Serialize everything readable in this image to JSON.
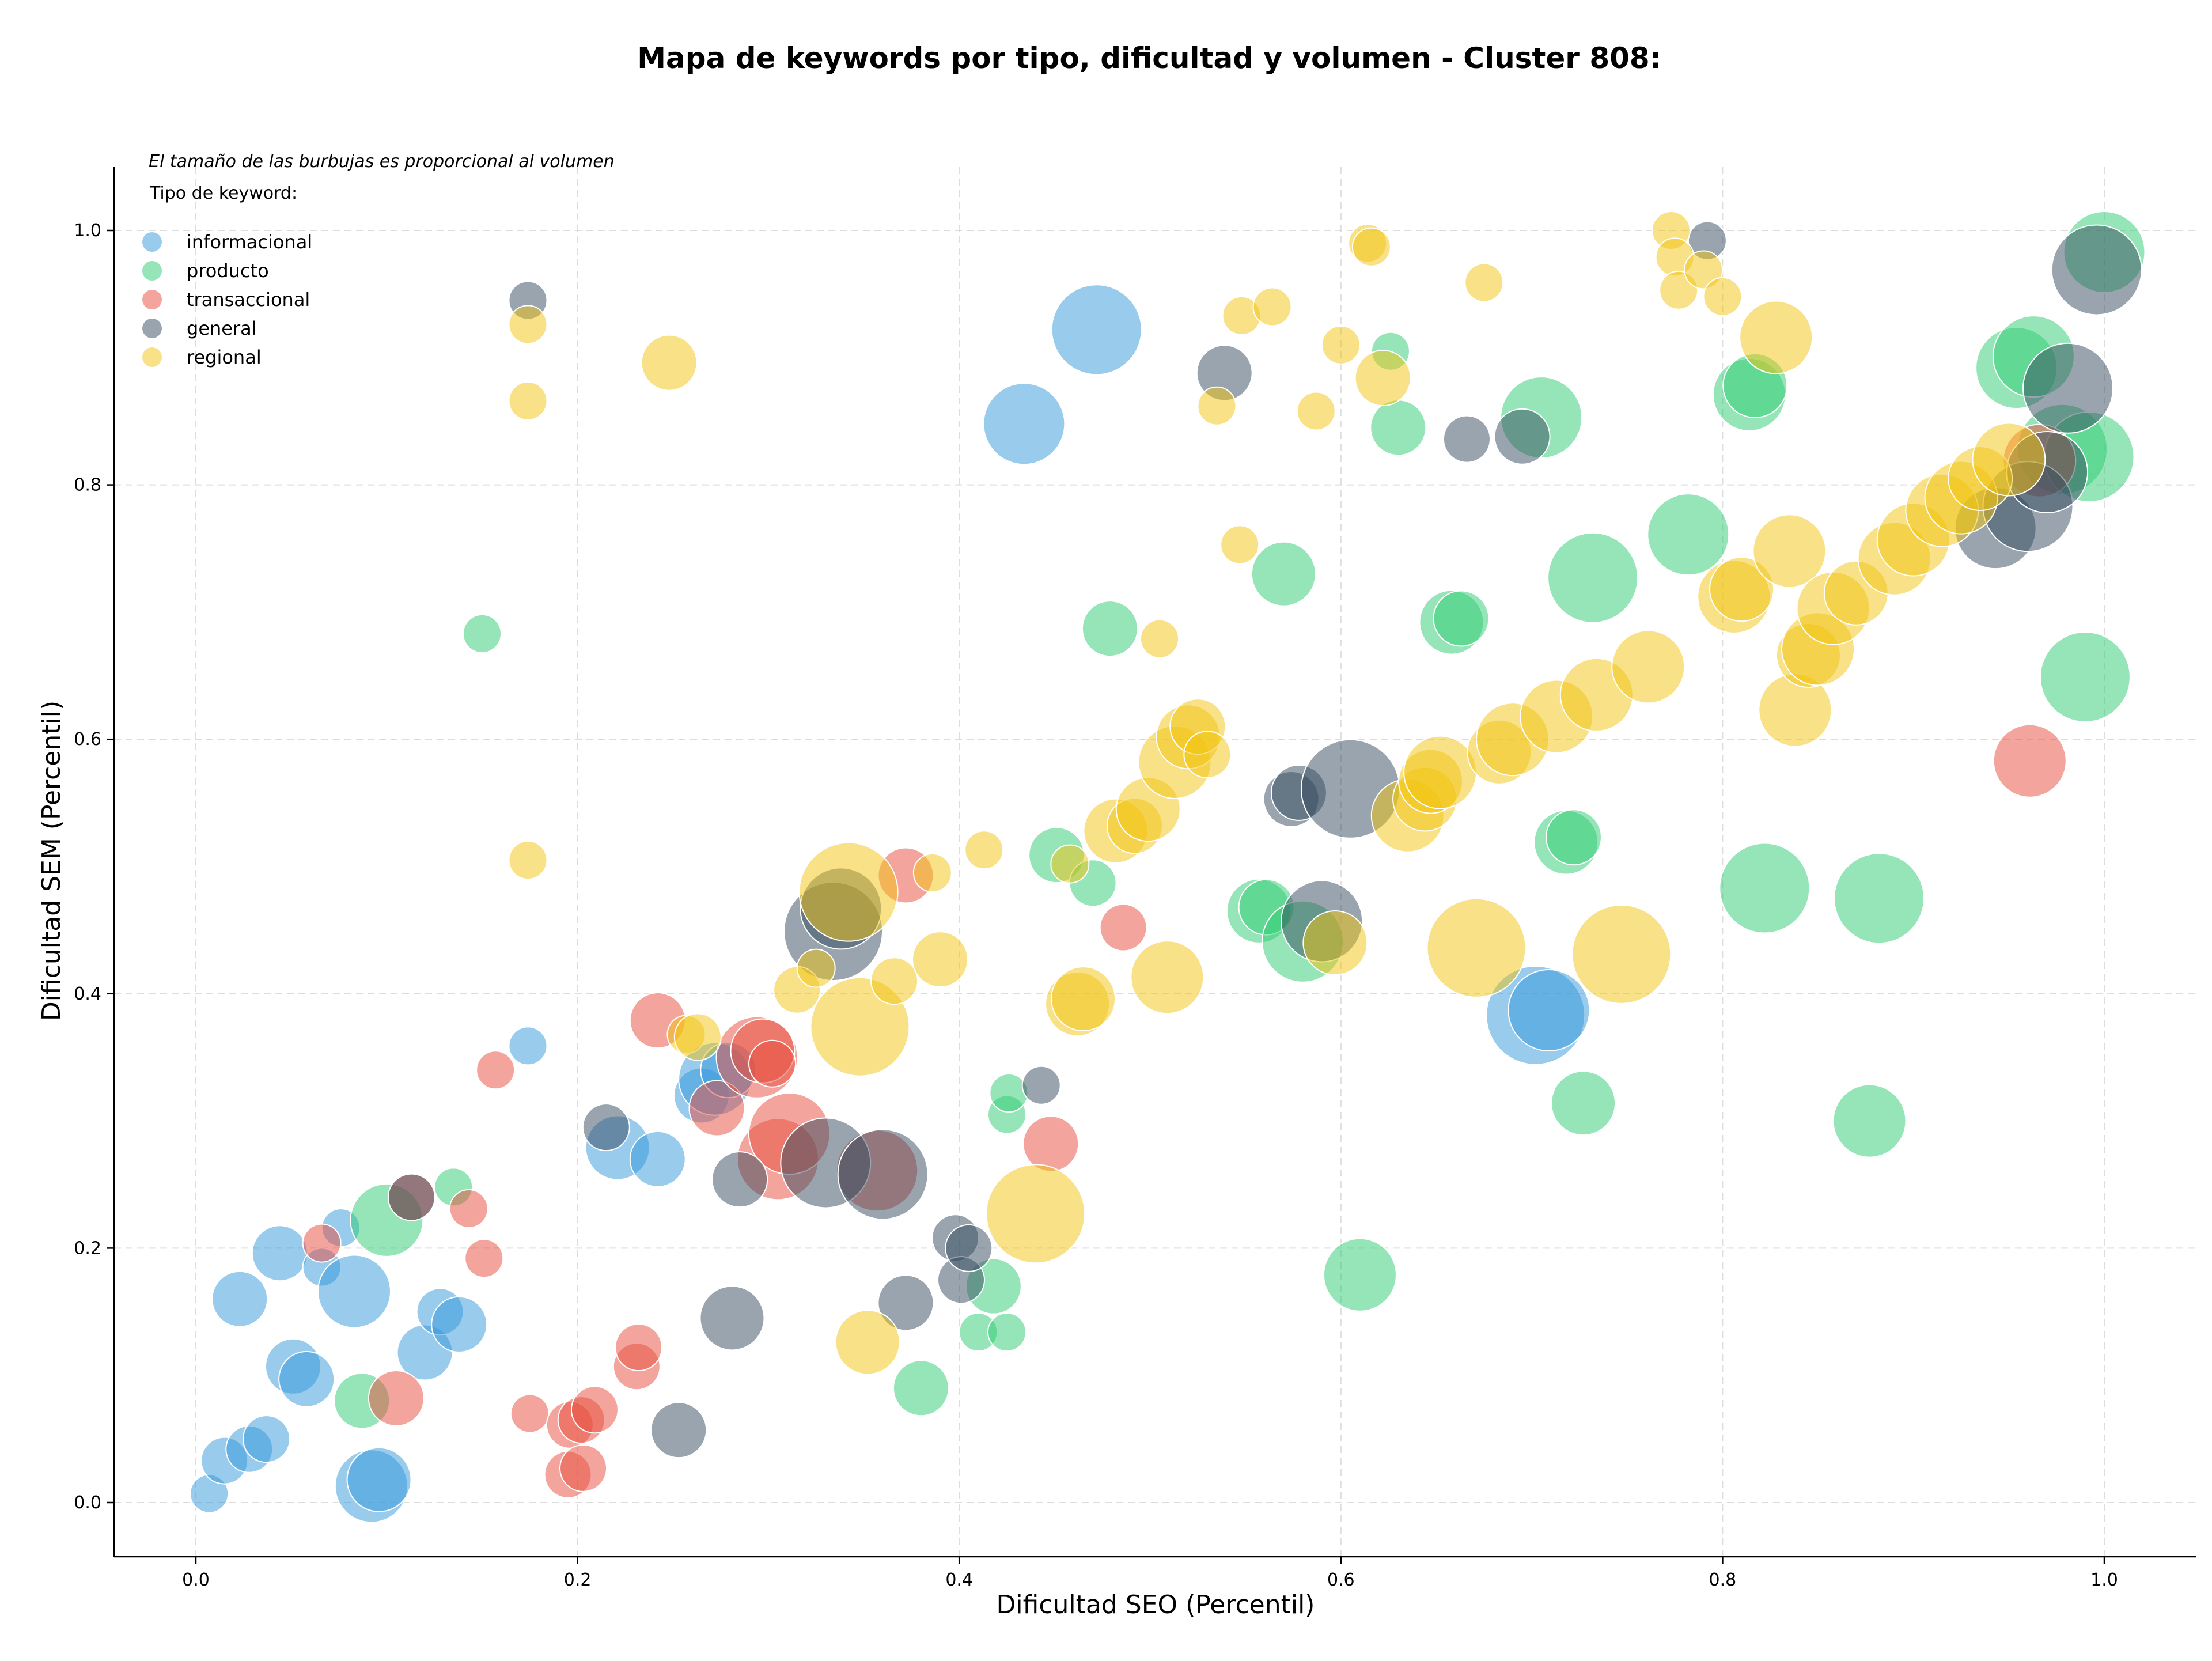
{
  "chart_data": {
    "type": "scatter",
    "title": "Mapa de keywords por tipo, dificultad y volumen - Cluster 808:",
    "xlabel": "Dificultad SEO (Percentil)",
    "ylabel": "Dificultad SEM (Percentil)",
    "xlim": [
      -0.04,
      1.05
    ],
    "ylim": [
      -0.04,
      1.05
    ],
    "xticks": [
      "0.0",
      "0.2",
      "0.4",
      "0.6",
      "0.8",
      "1.0"
    ],
    "yticks": [
      "0.0",
      "0.2",
      "0.4",
      "0.6",
      "0.8",
      "1.0"
    ],
    "grid": true,
    "legend_position": "top-left",
    "annotation": "El tamaño de las burbujas es proporcional al volumen",
    "legend_title": "Tipo de keyword:",
    "series": [
      {
        "name": "informacional",
        "color": "#3498db",
        "points": [
          [
            0.007,
            0.007,
            2
          ],
          [
            0.015,
            0.033,
            3
          ],
          [
            0.028,
            0.042,
            3
          ],
          [
            0.037,
            0.05,
            3
          ],
          [
            0.023,
            0.16,
            4
          ],
          [
            0.044,
            0.196,
            4
          ],
          [
            0.051,
            0.107,
            4
          ],
          [
            0.058,
            0.097,
            4
          ],
          [
            0.066,
            0.185,
            2
          ],
          [
            0.076,
            0.216,
            2
          ],
          [
            0.083,
            0.166,
            6
          ],
          [
            0.092,
            0.013,
            6
          ],
          [
            0.096,
            0.018,
            5
          ],
          [
            0.12,
            0.118,
            4
          ],
          [
            0.128,
            0.15,
            3
          ],
          [
            0.138,
            0.14,
            4
          ],
          [
            0.174,
            0.359,
            2
          ],
          [
            0.221,
            0.279,
            5
          ],
          [
            0.242,
            0.27,
            4
          ],
          [
            0.265,
            0.32,
            4
          ],
          [
            0.272,
            0.333,
            6
          ],
          [
            0.279,
            0.34,
            4
          ],
          [
            0.434,
            0.848,
            7
          ],
          [
            0.472,
            0.922,
            8
          ],
          [
            0.702,
            0.383,
            9
          ],
          [
            0.709,
            0.387,
            7
          ]
        ]
      },
      {
        "name": "producto",
        "color": "#2ecc71",
        "points": [
          [
            0.087,
            0.08,
            4
          ],
          [
            0.1,
            0.222,
            6
          ],
          [
            0.135,
            0.248,
            2
          ],
          [
            0.15,
            0.683,
            2
          ],
          [
            0.38,
            0.09,
            4
          ],
          [
            0.41,
            0.134,
            2
          ],
          [
            0.418,
            0.17,
            4
          ],
          [
            0.425,
            0.134,
            2
          ],
          [
            0.425,
            0.305,
            2
          ],
          [
            0.426,
            0.322,
            2
          ],
          [
            0.451,
            0.509,
            4
          ],
          [
            0.47,
            0.487,
            3
          ],
          [
            0.479,
            0.687,
            4
          ],
          [
            0.557,
            0.465,
            5
          ],
          [
            0.561,
            0.468,
            4
          ],
          [
            0.57,
            0.73,
            5
          ],
          [
            0.58,
            0.441,
            7
          ],
          [
            0.61,
            0.179,
            6
          ],
          [
            0.626,
            0.905,
            2
          ],
          [
            0.63,
            0.845,
            4
          ],
          [
            0.658,
            0.692,
            5
          ],
          [
            0.663,
            0.695,
            4
          ],
          [
            0.705,
            0.853,
            7
          ],
          [
            0.718,
            0.519,
            5
          ],
          [
            0.722,
            0.523,
            4
          ],
          [
            0.727,
            0.314,
            5
          ],
          [
            0.732,
            0.727,
            8
          ],
          [
            0.782,
            0.761,
            7
          ],
          [
            0.814,
            0.871,
            6
          ],
          [
            0.817,
            0.878,
            5
          ],
          [
            0.822,
            0.483,
            8
          ],
          [
            0.877,
            0.3,
            6
          ],
          [
            0.882,
            0.475,
            8
          ],
          [
            0.954,
            0.892,
            7
          ],
          [
            0.963,
            0.901,
            7
          ],
          [
            0.978,
            0.828,
            8
          ],
          [
            0.99,
            0.649,
            8
          ],
          [
            0.992,
            0.822,
            8
          ],
          [
            1.0,
            0.983,
            7
          ]
        ]
      },
      {
        "name": "transaccional",
        "color": "#e74c3c",
        "points": [
          [
            0.066,
            0.204,
            2
          ],
          [
            0.105,
            0.082,
            4
          ],
          [
            0.113,
            0.24,
            3
          ],
          [
            0.143,
            0.231,
            2
          ],
          [
            0.151,
            0.192,
            2
          ],
          [
            0.157,
            0.34,
            2
          ],
          [
            0.175,
            0.07,
            2
          ],
          [
            0.195,
            0.022,
            3
          ],
          [
            0.196,
            0.061,
            3
          ],
          [
            0.202,
            0.065,
            3
          ],
          [
            0.203,
            0.027,
            3
          ],
          [
            0.209,
            0.073,
            3
          ],
          [
            0.231,
            0.107,
            3
          ],
          [
            0.232,
            0.122,
            3
          ],
          [
            0.242,
            0.379,
            4
          ],
          [
            0.273,
            0.31,
            4
          ],
          [
            0.294,
            0.35,
            7
          ],
          [
            0.297,
            0.355,
            5
          ],
          [
            0.302,
            0.345,
            3
          ],
          [
            0.305,
            0.27,
            7
          ],
          [
            0.311,
            0.29,
            7
          ],
          [
            0.357,
            0.261,
            7
          ],
          [
            0.372,
            0.493,
            4
          ],
          [
            0.448,
            0.282,
            4
          ],
          [
            0.486,
            0.452,
            3
          ],
          [
            0.961,
            0.583,
            6
          ],
          [
            0.966,
            0.819,
            6
          ]
        ]
      },
      {
        "name": "general",
        "color": "#34495e",
        "points": [
          [
            0.113,
            0.24,
            3
          ],
          [
            0.174,
            0.945,
            2
          ],
          [
            0.215,
            0.295,
            3
          ],
          [
            0.253,
            0.057,
            4
          ],
          [
            0.285,
            0.254,
            4
          ],
          [
            0.281,
            0.145,
            5
          ],
          [
            0.33,
            0.267,
            8
          ],
          [
            0.334,
            0.449,
            9
          ],
          [
            0.338,
            0.467,
            7
          ],
          [
            0.36,
            0.258,
            8
          ],
          [
            0.372,
            0.157,
            4
          ],
          [
            0.398,
            0.208,
            3
          ],
          [
            0.401,
            0.175,
            3
          ],
          [
            0.405,
            0.2,
            3
          ],
          [
            0.443,
            0.328,
            2
          ],
          [
            0.539,
            0.888,
            4
          ],
          [
            0.574,
            0.553,
            4
          ],
          [
            0.578,
            0.558,
            4
          ],
          [
            0.59,
            0.457,
            7
          ],
          [
            0.605,
            0.561,
            9
          ],
          [
            0.666,
            0.836,
            3
          ],
          [
            0.695,
            0.838,
            4
          ],
          [
            0.792,
            0.992,
            2
          ],
          [
            0.943,
            0.766,
            7
          ],
          [
            0.96,
            0.783,
            8
          ],
          [
            0.97,
            0.81,
            7
          ],
          [
            0.981,
            0.876,
            8
          ],
          [
            0.996,
            0.969,
            8
          ]
        ]
      },
      {
        "name": "regional",
        "color": "#f1c40f",
        "points": [
          [
            0.174,
            0.926,
            2
          ],
          [
            0.174,
            0.866,
            2
          ],
          [
            0.174,
            0.505,
            2
          ],
          [
            0.248,
            0.896,
            4
          ],
          [
            0.257,
            0.368,
            2
          ],
          [
            0.263,
            0.366,
            3
          ],
          [
            0.315,
            0.403,
            3
          ],
          [
            0.325,
            0.42,
            2
          ],
          [
            0.342,
            0.48,
            9
          ],
          [
            0.348,
            0.374,
            9
          ],
          [
            0.352,
            0.126,
            5
          ],
          [
            0.366,
            0.41,
            3
          ],
          [
            0.386,
            0.495,
            2
          ],
          [
            0.39,
            0.427,
            4
          ],
          [
            0.413,
            0.513,
            2
          ],
          [
            0.44,
            0.227,
            9
          ],
          [
            0.458,
            0.502,
            2
          ],
          [
            0.462,
            0.392,
            5
          ],
          [
            0.465,
            0.396,
            5
          ],
          [
            0.482,
            0.528,
            5
          ],
          [
            0.492,
            0.532,
            4
          ],
          [
            0.499,
            0.545,
            5
          ],
          [
            0.505,
            0.679,
            2
          ],
          [
            0.509,
            0.413,
            6
          ],
          [
            0.513,
            0.582,
            6
          ],
          [
            0.52,
            0.602,
            5
          ],
          [
            0.525,
            0.61,
            4
          ],
          [
            0.53,
            0.588,
            3
          ],
          [
            0.535,
            0.862,
            2
          ],
          [
            0.547,
            0.753,
            2
          ],
          [
            0.548,
            0.933,
            2
          ],
          [
            0.564,
            0.94,
            2
          ],
          [
            0.587,
            0.858,
            2
          ],
          [
            0.597,
            0.44,
            5
          ],
          [
            0.6,
            0.91,
            2
          ],
          [
            0.614,
            0.99,
            2
          ],
          [
            0.616,
            0.987,
            2
          ],
          [
            0.622,
            0.884,
            4
          ],
          [
            0.635,
            0.54,
            6
          ],
          [
            0.644,
            0.553,
            5
          ],
          [
            0.647,
            0.567,
            5
          ],
          [
            0.652,
            0.574,
            6
          ],
          [
            0.671,
            0.436,
            9
          ],
          [
            0.675,
            0.959,
            2
          ],
          [
            0.683,
            0.59,
            5
          ],
          [
            0.69,
            0.6,
            6
          ],
          [
            0.713,
            0.618,
            6
          ],
          [
            0.734,
            0.635,
            6
          ],
          [
            0.747,
            0.431,
            9
          ],
          [
            0.761,
            0.657,
            6
          ],
          [
            0.773,
            1.0,
            2
          ],
          [
            0.775,
            0.979,
            2
          ],
          [
            0.777,
            0.953,
            2
          ],
          [
            0.79,
            0.969,
            2
          ],
          [
            0.8,
            0.948,
            2
          ],
          [
            0.806,
            0.712,
            6
          ],
          [
            0.81,
            0.718,
            5
          ],
          [
            0.828,
            0.916,
            6
          ],
          [
            0.835,
            0.748,
            6
          ],
          [
            0.838,
            0.623,
            6
          ],
          [
            0.845,
            0.666,
            5
          ],
          [
            0.85,
            0.671,
            6
          ],
          [
            0.858,
            0.703,
            6
          ],
          [
            0.87,
            0.715,
            5
          ],
          [
            0.89,
            0.742,
            6
          ],
          [
            0.9,
            0.757,
            6
          ],
          [
            0.915,
            0.78,
            6
          ],
          [
            0.925,
            0.79,
            6
          ],
          [
            0.935,
            0.805,
            5
          ],
          [
            0.95,
            0.82,
            6
          ]
        ]
      }
    ]
  }
}
